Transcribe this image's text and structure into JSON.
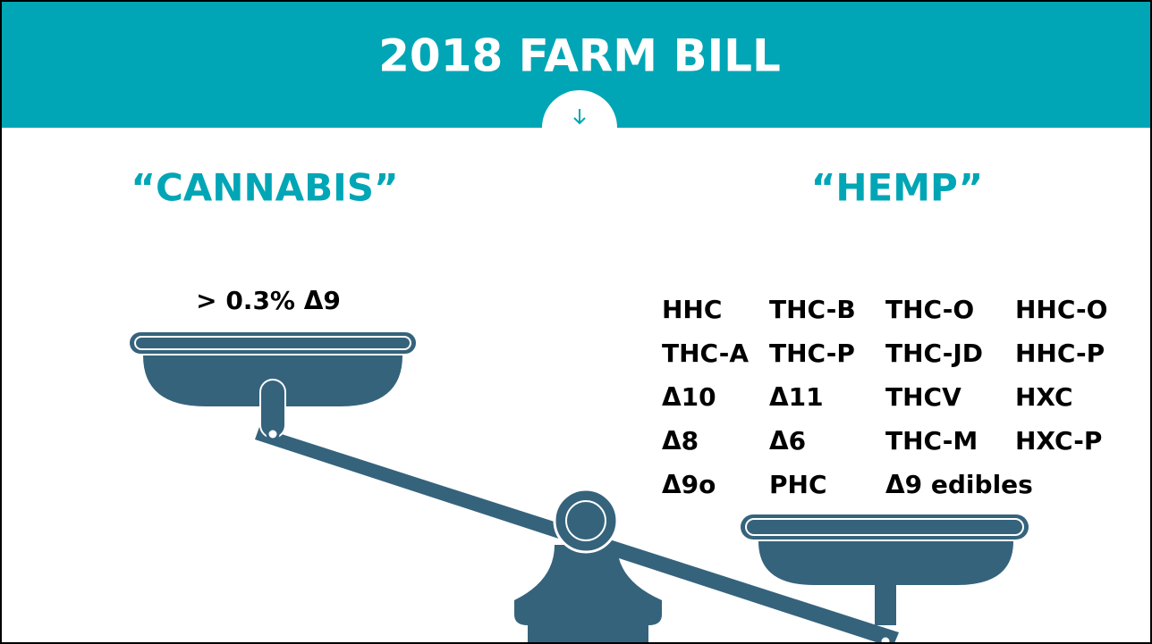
{
  "header": {
    "title": "2018 FARM BILL"
  },
  "cannabis": {
    "label": "“CANNABIS”",
    "threshold": "> 0.3% Δ9"
  },
  "hemp": {
    "label": "“HEMP”",
    "rows": [
      [
        "HHC",
        "THC-B",
        "THC-O",
        "HHC-O"
      ],
      [
        "THC-A",
        "THC-P",
        "THC-JD",
        "HHC-P"
      ],
      [
        "Δ10",
        "Δ11",
        "THCV",
        "HXC"
      ],
      [
        "Δ8",
        "Δ6",
        "THC-M",
        "HXC-P"
      ],
      [
        "Δ9o",
        "PHC",
        "Δ9 edibles"
      ]
    ]
  }
}
